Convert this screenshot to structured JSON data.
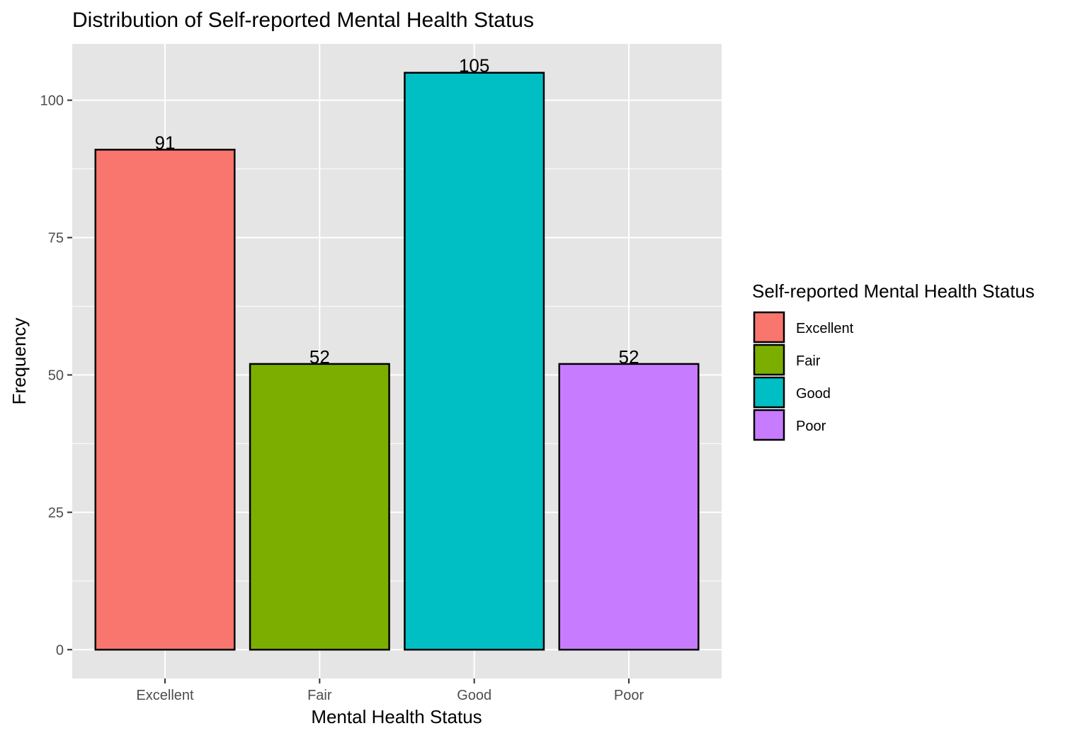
{
  "chart_data": {
    "type": "bar",
    "title": "Distribution of Self-reported Mental Health Status",
    "xlabel": "Mental Health Status",
    "ylabel": "Frequency",
    "categories": [
      "Excellent",
      "Fair",
      "Good",
      "Poor"
    ],
    "values": [
      91,
      52,
      105,
      52
    ],
    "colors": [
      "#F8766D",
      "#7CAE00",
      "#00BFC4",
      "#C77CFF"
    ],
    "bar_border_color": "#000000",
    "panel_background": "#E5E5E5",
    "grid_color": "#FFFFFF",
    "grid": true,
    "ylim": [
      -5.25,
      110.25
    ],
    "yticks": [
      0,
      25,
      50,
      75,
      100
    ],
    "ytick_labels": [
      "0",
      "25",
      "50",
      "75",
      "100"
    ],
    "data_labels": [
      "91",
      "52",
      "105",
      "52"
    ],
    "legend": {
      "title": "Self-reported Mental Health Status",
      "placement": "right",
      "entries": [
        "Excellent",
        "Fair",
        "Good",
        "Poor"
      ]
    }
  }
}
